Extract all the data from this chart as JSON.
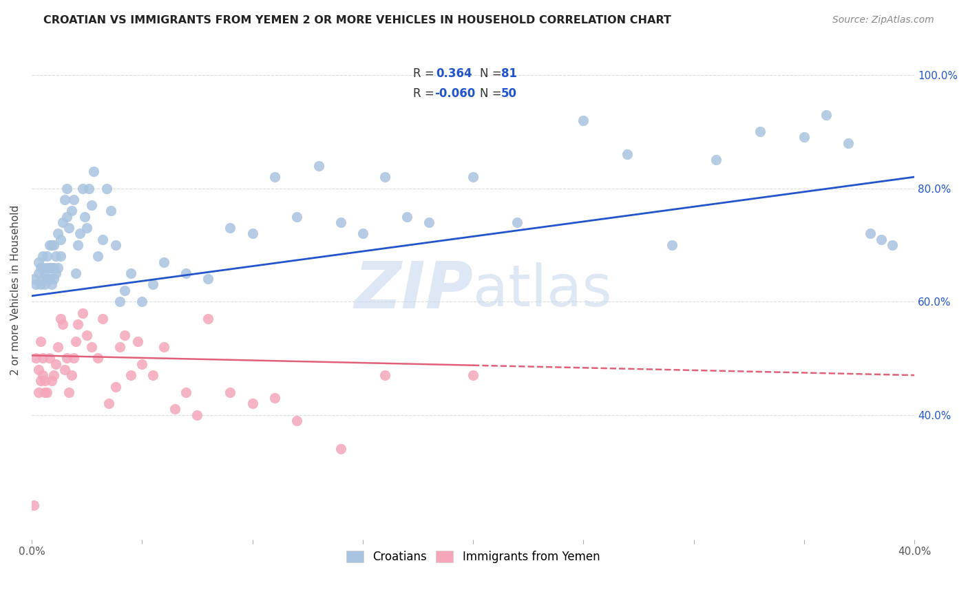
{
  "title": "CROATIAN VS IMMIGRANTS FROM YEMEN 2 OR MORE VEHICLES IN HOUSEHOLD CORRELATION CHART",
  "source": "Source: ZipAtlas.com",
  "ylabel": "2 or more Vehicles in Household",
  "x_min": 0.0,
  "x_max": 0.4,
  "y_min": 0.18,
  "y_max": 1.06,
  "blue_R": 0.364,
  "blue_N": 81,
  "pink_R": -0.06,
  "pink_N": 50,
  "blue_color": "#a8c4e0",
  "blue_line_color": "#2255cc",
  "pink_color": "#f4a7b9",
  "pink_line_color": "#e0607a",
  "legend_label_blue": "Croatians",
  "legend_label_pink": "Immigrants from Yemen",
  "watermark_zip": "ZIP",
  "watermark_atlas": "atlas",
  "background_color": "#ffffff",
  "grid_color": "#dddddd",
  "blue_scatter_x": [
    0.001,
    0.002,
    0.003,
    0.003,
    0.004,
    0.004,
    0.005,
    0.005,
    0.005,
    0.006,
    0.006,
    0.007,
    0.007,
    0.007,
    0.008,
    0.008,
    0.008,
    0.009,
    0.009,
    0.009,
    0.01,
    0.01,
    0.01,
    0.011,
    0.011,
    0.012,
    0.012,
    0.013,
    0.013,
    0.014,
    0.015,
    0.016,
    0.016,
    0.017,
    0.018,
    0.019,
    0.02,
    0.021,
    0.022,
    0.023,
    0.024,
    0.025,
    0.026,
    0.027,
    0.028,
    0.03,
    0.032,
    0.034,
    0.036,
    0.038,
    0.04,
    0.042,
    0.045,
    0.05,
    0.055,
    0.06,
    0.07,
    0.08,
    0.09,
    0.1,
    0.11,
    0.12,
    0.13,
    0.14,
    0.15,
    0.16,
    0.17,
    0.18,
    0.2,
    0.22,
    0.25,
    0.27,
    0.29,
    0.31,
    0.33,
    0.35,
    0.36,
    0.37,
    0.38,
    0.385,
    0.39
  ],
  "blue_scatter_y": [
    0.64,
    0.63,
    0.65,
    0.67,
    0.63,
    0.66,
    0.64,
    0.66,
    0.68,
    0.63,
    0.65,
    0.64,
    0.66,
    0.68,
    0.64,
    0.66,
    0.7,
    0.63,
    0.66,
    0.7,
    0.64,
    0.66,
    0.7,
    0.65,
    0.68,
    0.66,
    0.72,
    0.68,
    0.71,
    0.74,
    0.78,
    0.75,
    0.8,
    0.73,
    0.76,
    0.78,
    0.65,
    0.7,
    0.72,
    0.8,
    0.75,
    0.73,
    0.8,
    0.77,
    0.83,
    0.68,
    0.71,
    0.8,
    0.76,
    0.7,
    0.6,
    0.62,
    0.65,
    0.6,
    0.63,
    0.67,
    0.65,
    0.64,
    0.73,
    0.72,
    0.82,
    0.75,
    0.84,
    0.74,
    0.72,
    0.82,
    0.75,
    0.74,
    0.82,
    0.74,
    0.92,
    0.86,
    0.7,
    0.85,
    0.9,
    0.89,
    0.93,
    0.88,
    0.72,
    0.71,
    0.7
  ],
  "pink_scatter_x": [
    0.001,
    0.002,
    0.003,
    0.003,
    0.004,
    0.004,
    0.005,
    0.005,
    0.006,
    0.006,
    0.007,
    0.008,
    0.009,
    0.01,
    0.011,
    0.012,
    0.013,
    0.014,
    0.015,
    0.016,
    0.017,
    0.018,
    0.019,
    0.02,
    0.021,
    0.023,
    0.025,
    0.027,
    0.03,
    0.032,
    0.035,
    0.038,
    0.04,
    0.042,
    0.045,
    0.048,
    0.05,
    0.055,
    0.06,
    0.065,
    0.07,
    0.075,
    0.08,
    0.09,
    0.1,
    0.11,
    0.12,
    0.14,
    0.16,
    0.2
  ],
  "pink_scatter_y": [
    0.24,
    0.5,
    0.44,
    0.48,
    0.53,
    0.46,
    0.47,
    0.5,
    0.44,
    0.46,
    0.44,
    0.5,
    0.46,
    0.47,
    0.49,
    0.52,
    0.57,
    0.56,
    0.48,
    0.5,
    0.44,
    0.47,
    0.5,
    0.53,
    0.56,
    0.58,
    0.54,
    0.52,
    0.5,
    0.57,
    0.42,
    0.45,
    0.52,
    0.54,
    0.47,
    0.53,
    0.49,
    0.47,
    0.52,
    0.41,
    0.44,
    0.4,
    0.57,
    0.44,
    0.42,
    0.43,
    0.39,
    0.34,
    0.47,
    0.47
  ]
}
